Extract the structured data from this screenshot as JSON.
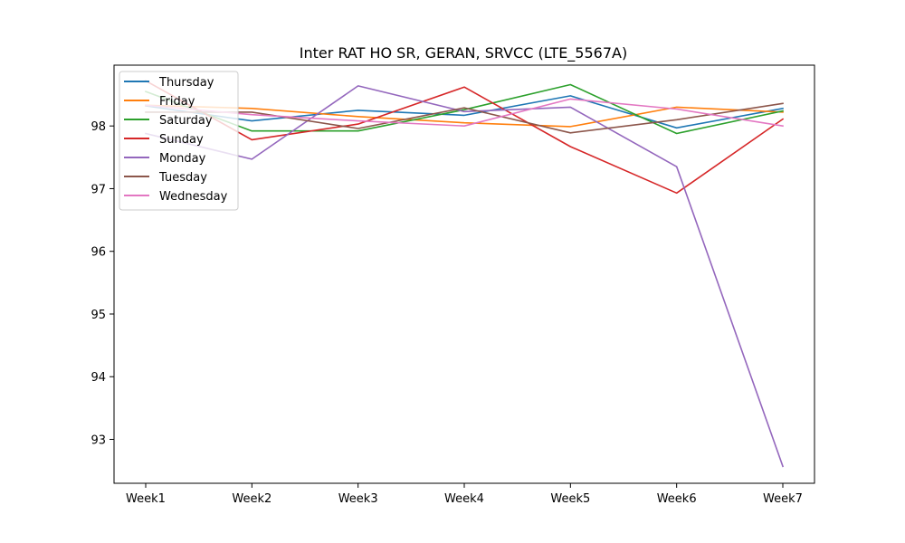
{
  "chart_data": {
    "type": "line",
    "title": "Inter RAT HO SR, GERAN, SRVCC (LTE_5567A)",
    "xlabel": "",
    "ylabel": "",
    "categories": [
      "Week1",
      "Week2",
      "Week3",
      "Week4",
      "Week5",
      "Week6",
      "Week7"
    ],
    "yticks": [
      93,
      94,
      95,
      96,
      97,
      98
    ],
    "ylim": [
      92.3,
      98.97
    ],
    "grid": false,
    "legend_position": "top-left",
    "series": [
      {
        "name": "Thursday",
        "color": "#1f77b4",
        "values": [
          98.32,
          98.08,
          98.25,
          98.17,
          98.48,
          97.97,
          98.28
        ]
      },
      {
        "name": "Friday",
        "color": "#ff7f0e",
        "values": [
          98.33,
          98.28,
          98.15,
          98.05,
          97.99,
          98.3,
          98.22
        ]
      },
      {
        "name": "Saturday",
        "color": "#2ca02c",
        "values": [
          98.55,
          97.92,
          97.92,
          98.26,
          98.66,
          97.88,
          98.24
        ]
      },
      {
        "name": "Sunday",
        "color": "#d62728",
        "values": [
          98.72,
          97.78,
          98.03,
          98.62,
          97.67,
          96.93,
          98.11
        ]
      },
      {
        "name": "Monday",
        "color": "#9467bd",
        "values": [
          97.88,
          97.47,
          98.64,
          98.23,
          98.3,
          97.35,
          92.57
        ]
      },
      {
        "name": "Tuesday",
        "color": "#8c564b",
        "values": [
          98.22,
          98.22,
          97.96,
          98.29,
          97.89,
          98.1,
          98.36
        ]
      },
      {
        "name": "Wednesday",
        "color": "#e377c2",
        "values": [
          98.33,
          98.18,
          98.08,
          98.0,
          98.43,
          98.27,
          98.0
        ]
      }
    ]
  }
}
